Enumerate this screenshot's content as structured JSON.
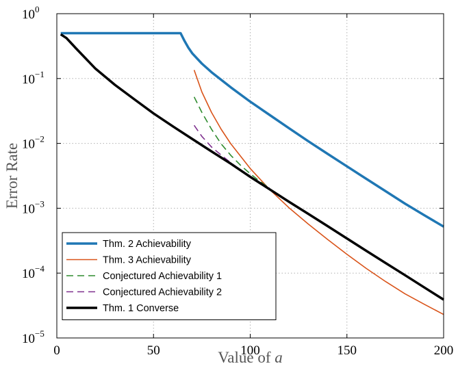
{
  "chart_data": {
    "type": "line",
    "title": "",
    "xlabel": "Value of",
    "xlabel_var": "a",
    "ylabel": "Error Rate",
    "xlim": [
      0,
      200
    ],
    "ylim": [
      1e-05,
      1
    ],
    "yscale": "log",
    "grid": true,
    "legend_position": "bottom-left",
    "x_ticks": [
      {
        "value": 0,
        "label": "0"
      },
      {
        "value": 50,
        "label": "50"
      },
      {
        "value": 100,
        "label": "100"
      },
      {
        "value": 150,
        "label": "150"
      },
      {
        "value": 200,
        "label": "200"
      }
    ],
    "y_ticks": [
      {
        "value": 1e-05,
        "base": "10",
        "exp": "−5"
      },
      {
        "value": 0.0001,
        "base": "10",
        "exp": "−4"
      },
      {
        "value": 0.001,
        "base": "10",
        "exp": "−3"
      },
      {
        "value": 0.01,
        "base": "10",
        "exp": "−2"
      },
      {
        "value": 0.1,
        "base": "10",
        "exp": "−1"
      },
      {
        "value": 1,
        "base": "10",
        "exp": "0"
      }
    ],
    "series": [
      {
        "name": "Thm. 2 Achievability",
        "color": "#1f77b4",
        "dash": "solid",
        "width": 3.5,
        "points": [
          [
            2,
            0.5
          ],
          [
            64,
            0.5
          ],
          [
            66,
            0.38
          ],
          [
            68,
            0.3
          ],
          [
            70,
            0.245
          ],
          [
            75,
            0.17
          ],
          [
            80,
            0.125
          ],
          [
            90,
            0.073
          ],
          [
            100,
            0.044
          ],
          [
            110,
            0.0275
          ],
          [
            120,
            0.0172
          ],
          [
            130,
            0.0108
          ],
          [
            140,
            0.0069
          ],
          [
            150,
            0.00442
          ],
          [
            160,
            0.00284
          ],
          [
            170,
            0.00183
          ],
          [
            180,
            0.00118
          ],
          [
            190,
            0.00078
          ],
          [
            200,
            0.00052
          ]
        ]
      },
      {
        "name": "Thm. 3 Achievability",
        "color": "#d95319",
        "dash": "solid",
        "width": 1.6,
        "points": [
          [
            71,
            0.135
          ],
          [
            75,
            0.062
          ],
          [
            80,
            0.03
          ],
          [
            85,
            0.0165
          ],
          [
            90,
            0.0098
          ],
          [
            100,
            0.0041
          ],
          [
            110,
            0.00195
          ],
          [
            120,
            0.00102
          ],
          [
            130,
            0.00057
          ],
          [
            140,
            0.00033
          ],
          [
            150,
            0.000195
          ],
          [
            160,
            0.000118
          ],
          [
            170,
            7.4e-05
          ],
          [
            180,
            4.8e-05
          ],
          [
            190,
            3.3e-05
          ],
          [
            200,
            2.3e-05
          ]
        ]
      },
      {
        "name": "Conjectured Achievability 1",
        "color": "#2e8b2e",
        "dash": "10 6",
        "width": 1.6,
        "points": [
          [
            71,
            0.052
          ],
          [
            75,
            0.03
          ],
          [
            80,
            0.0165
          ],
          [
            85,
            0.0098
          ],
          [
            90,
            0.0065
          ],
          [
            95,
            0.0046
          ],
          [
            100,
            0.0034
          ],
          [
            105,
            0.0026
          ],
          [
            110,
            0.00205
          ]
        ]
      },
      {
        "name": "Conjectured Achievability 2",
        "color": "#7e2f8e",
        "dash": "10 6",
        "width": 1.6,
        "points": [
          [
            71,
            0.019
          ],
          [
            75,
            0.0128
          ],
          [
            80,
            0.0088
          ],
          [
            85,
            0.0066
          ],
          [
            90,
            0.005
          ],
          [
            95,
            0.0039
          ],
          [
            100,
            0.0031
          ],
          [
            105,
            0.0025
          ],
          [
            110,
            0.00205
          ]
        ]
      },
      {
        "name": "Thm. 1 Converse",
        "color": "#000000",
        "dash": "solid",
        "width": 3.5,
        "points": [
          [
            2,
            0.48
          ],
          [
            5,
            0.42
          ],
          [
            10,
            0.29
          ],
          [
            20,
            0.142
          ],
          [
            30,
            0.08
          ],
          [
            40,
            0.048
          ],
          [
            50,
            0.029
          ],
          [
            60,
            0.0183
          ],
          [
            70,
            0.0117
          ],
          [
            80,
            0.0075
          ],
          [
            90,
            0.00485
          ],
          [
            100,
            0.00305
          ],
          [
            110,
            0.00196
          ],
          [
            120,
            0.00126
          ],
          [
            130,
            0.00082
          ],
          [
            140,
            0.00053
          ],
          [
            150,
            0.000342
          ],
          [
            160,
            0.000221
          ],
          [
            170,
            0.000143
          ],
          [
            180,
            9.3e-05
          ],
          [
            190,
            6e-05
          ],
          [
            200,
            3.9e-05
          ]
        ]
      }
    ]
  }
}
